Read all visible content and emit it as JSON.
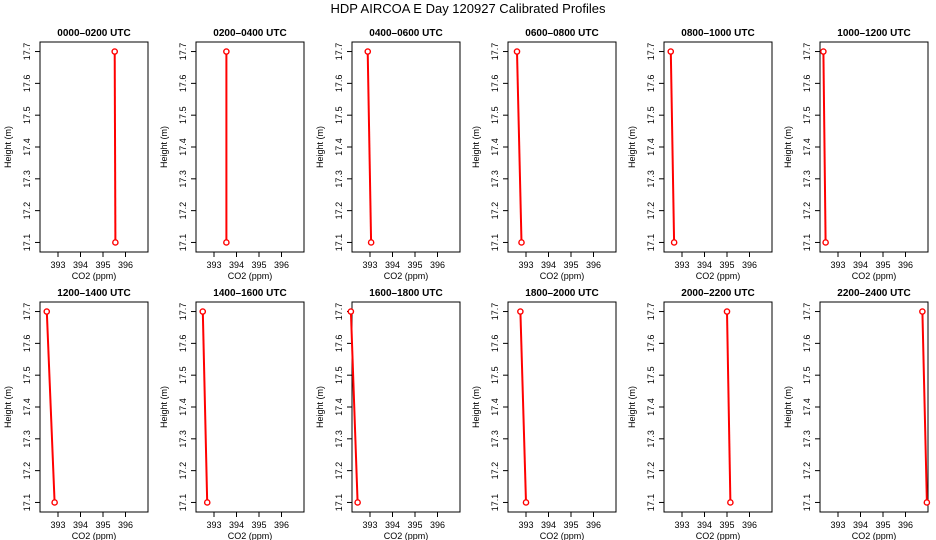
{
  "page": {
    "title": "HDP AIRCOA E  Day 120927  Calibrated Profiles"
  },
  "colors": {
    "profile_line": "#ff0000",
    "point_marker": "#ff0000",
    "axis": "#000000"
  },
  "chart_data": [
    {
      "type": "line",
      "title": "0000–0200 UTC",
      "xlabel": "CO2 (ppm)",
      "ylabel": "Height (m)",
      "xlim": [
        392.2,
        397.0
      ],
      "ylim": [
        17.07,
        17.73
      ],
      "grid": false,
      "xticks": [
        393,
        394,
        395,
        396
      ],
      "yticks": [
        17.1,
        17.2,
        17.3,
        17.4,
        17.5,
        17.6,
        17.7
      ],
      "series": [
        {
          "x": [
            395.52,
            395.55
          ],
          "y": [
            17.7,
            17.1
          ]
        }
      ]
    },
    {
      "type": "line",
      "title": "0200–0400 UTC",
      "xlabel": "CO2 (ppm)",
      "ylabel": "Height (m)",
      "xlim": [
        392.2,
        397.0
      ],
      "ylim": [
        17.07,
        17.73
      ],
      "grid": false,
      "xticks": [
        393,
        394,
        395,
        396
      ],
      "yticks": [
        17.1,
        17.2,
        17.3,
        17.4,
        17.5,
        17.6,
        17.7
      ],
      "series": [
        {
          "x": [
            393.55,
            393.55
          ],
          "y": [
            17.7,
            17.1
          ]
        }
      ]
    },
    {
      "type": "line",
      "title": "0400–0600 UTC",
      "xlabel": "CO2 (ppm)",
      "ylabel": "Height (m)",
      "xlim": [
        392.2,
        397.0
      ],
      "ylim": [
        17.07,
        17.73
      ],
      "grid": false,
      "xticks": [
        393,
        394,
        395,
        396
      ],
      "yticks": [
        17.1,
        17.2,
        17.3,
        17.4,
        17.5,
        17.6,
        17.7
      ],
      "series": [
        {
          "x": [
            392.9,
            393.05
          ],
          "y": [
            17.7,
            17.1
          ]
        }
      ]
    },
    {
      "type": "line",
      "title": "0600–0800 UTC",
      "xlabel": "CO2 (ppm)",
      "ylabel": "Height (m)",
      "xlim": [
        392.2,
        397.0
      ],
      "ylim": [
        17.07,
        17.73
      ],
      "grid": false,
      "xticks": [
        393,
        394,
        395,
        396
      ],
      "yticks": [
        17.1,
        17.2,
        17.3,
        17.4,
        17.5,
        17.6,
        17.7
      ],
      "series": [
        {
          "x": [
            392.6,
            392.8
          ],
          "y": [
            17.7,
            17.1
          ]
        }
      ]
    },
    {
      "type": "line",
      "title": "0800–1000 UTC",
      "xlabel": "CO2 (ppm)",
      "ylabel": "Height (m)",
      "xlim": [
        392.2,
        397.0
      ],
      "ylim": [
        17.07,
        17.73
      ],
      "grid": false,
      "xticks": [
        393,
        394,
        395,
        396
      ],
      "yticks": [
        17.1,
        17.2,
        17.3,
        17.4,
        17.5,
        17.6,
        17.7
      ],
      "series": [
        {
          "x": [
            392.5,
            392.65
          ],
          "y": [
            17.7,
            17.1
          ]
        }
      ]
    },
    {
      "type": "line",
      "title": "1000–1200 UTC",
      "xlabel": "CO2 (ppm)",
      "ylabel": "Height (m)",
      "xlim": [
        392.2,
        397.0
      ],
      "ylim": [
        17.07,
        17.73
      ],
      "grid": false,
      "xticks": [
        393,
        394,
        395,
        396
      ],
      "yticks": [
        17.1,
        17.2,
        17.3,
        17.4,
        17.5,
        17.6,
        17.7
      ],
      "series": [
        {
          "x": [
            392.35,
            392.45
          ],
          "y": [
            17.7,
            17.1
          ]
        }
      ]
    },
    {
      "type": "line",
      "title": "1200–1400 UTC",
      "xlabel": "CO2 (ppm)",
      "ylabel": "Height (m)",
      "xlim": [
        392.2,
        397.0
      ],
      "ylim": [
        17.07,
        17.73
      ],
      "grid": false,
      "xticks": [
        393,
        394,
        395,
        396
      ],
      "yticks": [
        17.1,
        17.2,
        17.3,
        17.4,
        17.5,
        17.6,
        17.7
      ],
      "series": [
        {
          "x": [
            392.5,
            392.85
          ],
          "y": [
            17.7,
            17.1
          ]
        }
      ]
    },
    {
      "type": "line",
      "title": "1400–1600 UTC",
      "xlabel": "CO2 (ppm)",
      "ylabel": "Height (m)",
      "xlim": [
        392.2,
        397.0
      ],
      "ylim": [
        17.07,
        17.73
      ],
      "grid": false,
      "xticks": [
        393,
        394,
        395,
        396
      ],
      "yticks": [
        17.1,
        17.2,
        17.3,
        17.4,
        17.5,
        17.6,
        17.7
      ],
      "series": [
        {
          "x": [
            392.5,
            392.7
          ],
          "y": [
            17.7,
            17.1
          ]
        }
      ]
    },
    {
      "type": "line",
      "title": "1600–1800 UTC",
      "xlabel": "CO2 (ppm)",
      "ylabel": "Height (m)",
      "xlim": [
        392.2,
        397.0
      ],
      "ylim": [
        17.07,
        17.73
      ],
      "grid": false,
      "xticks": [
        393,
        394,
        395,
        396
      ],
      "yticks": [
        17.1,
        17.2,
        17.3,
        17.4,
        17.5,
        17.6,
        17.7
      ],
      "series": [
        {
          "x": [
            392.15,
            392.45
          ],
          "y": [
            17.7,
            17.1
          ]
        }
      ]
    },
    {
      "type": "line",
      "title": "1800–2000 UTC",
      "xlabel": "CO2 (ppm)",
      "ylabel": "Height (m)",
      "xlim": [
        392.2,
        397.0
      ],
      "ylim": [
        17.07,
        17.73
      ],
      "grid": false,
      "xticks": [
        393,
        394,
        395,
        396
      ],
      "yticks": [
        17.1,
        17.2,
        17.3,
        17.4,
        17.5,
        17.6,
        17.7
      ],
      "series": [
        {
          "x": [
            392.75,
            393.0
          ],
          "y": [
            17.7,
            17.1
          ]
        }
      ]
    },
    {
      "type": "line",
      "title": "2000–2200 UTC",
      "xlabel": "CO2 (ppm)",
      "ylabel": "Height (m)",
      "xlim": [
        392.2,
        397.0
      ],
      "ylim": [
        17.07,
        17.73
      ],
      "grid": false,
      "xticks": [
        393,
        394,
        395,
        396
      ],
      "yticks": [
        17.1,
        17.2,
        17.3,
        17.4,
        17.5,
        17.6,
        17.7
      ],
      "series": [
        {
          "x": [
            395.0,
            395.15
          ],
          "y": [
            17.7,
            17.1
          ]
        }
      ]
    },
    {
      "type": "line",
      "title": "2200–2400 UTC",
      "xlabel": "CO2 (ppm)",
      "ylabel": "Height (m)",
      "xlim": [
        392.2,
        397.0
      ],
      "ylim": [
        17.07,
        17.73
      ],
      "grid": false,
      "xticks": [
        393,
        394,
        395,
        396
      ],
      "yticks": [
        17.1,
        17.2,
        17.3,
        17.4,
        17.5,
        17.6,
        17.7
      ],
      "series": [
        {
          "x": [
            396.75,
            396.95
          ],
          "y": [
            17.7,
            17.1
          ]
        }
      ]
    }
  ]
}
